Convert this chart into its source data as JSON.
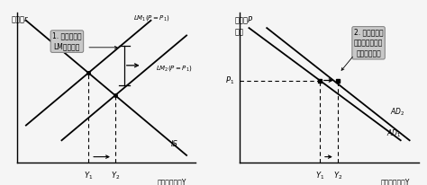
{
  "bg_color": "#f5f5f5",
  "panel1": {
    "ylabel": "利率，r",
    "xlabel": "收入，产出，Y",
    "lm1_label": "$LM_1(P=P_1)$",
    "lm2_label": "$LM_2(P=P_1)$",
    "is_label": "IS",
    "annotation_line1": "1. 货币扩张使",
    "annotation_line2": "LM曲线移动",
    "y1_label": "$Y_1$",
    "y2_label": "$Y_2$"
  },
  "panel2": {
    "ylabel_line1": "价格，P",
    "ylabel_line2": "水平",
    "xlabel": "收入，产出，Y",
    "ad1_label": "$AD_1$",
    "ad2_label": "$AD_2$",
    "p1_label": "$P_1$",
    "y1_label": "$Y_1$",
    "y2_label": "$Y_2$",
    "annotation_line1": "2. 增加了任何",
    "annotation_line2": "一种既定物价水",
    "annotation_line3": "平上的总需求"
  }
}
